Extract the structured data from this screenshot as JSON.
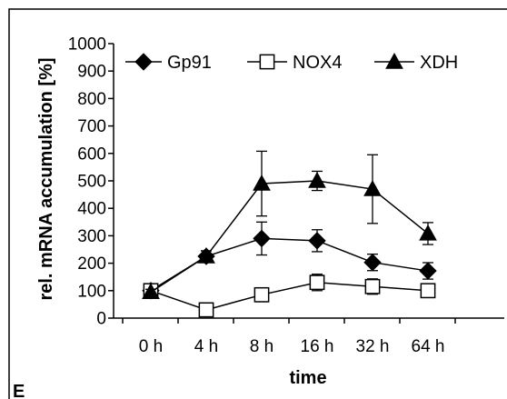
{
  "panel_label": "E",
  "chart_data": {
    "type": "line",
    "xlabel": "time",
    "ylabel": "rel. mRNA accumulation [%]",
    "categories": [
      "0 h",
      "4 h",
      "8 h",
      "16 h",
      "32 h",
      "64 h"
    ],
    "ylim": [
      0,
      1000
    ],
    "yticks": [
      0,
      100,
      200,
      300,
      400,
      500,
      600,
      700,
      800,
      900,
      1000
    ],
    "grid": false,
    "legend_position": "top",
    "series": [
      {
        "name": "Gp91",
        "marker": "diamond-filled",
        "values": [
          100,
          225,
          290,
          282,
          203,
          172
        ],
        "errors": [
          10,
          20,
          60,
          40,
          30,
          30
        ]
      },
      {
        "name": "NOX4",
        "marker": "square-open",
        "values": [
          100,
          30,
          85,
          130,
          115,
          100
        ],
        "errors": [
          10,
          8,
          15,
          30,
          28,
          20
        ]
      },
      {
        "name": "XDH",
        "marker": "triangle-filled",
        "values": [
          95,
          225,
          490,
          500,
          470,
          308
        ],
        "errors": [
          10,
          20,
          118,
          35,
          125,
          40
        ]
      }
    ],
    "colors": {
      "line": "#000000",
      "marker": "#000000",
      "open_fill": "#ffffff"
    }
  }
}
